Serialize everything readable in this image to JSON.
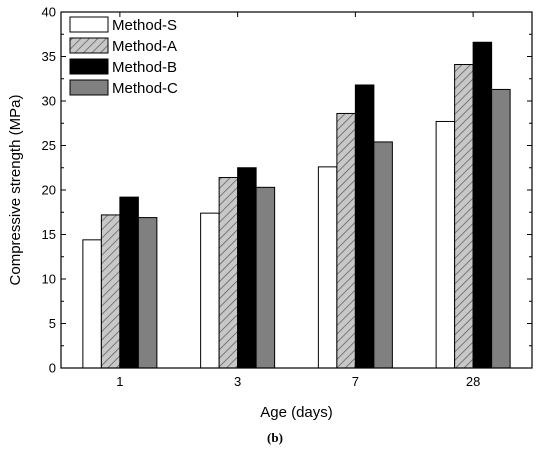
{
  "chart_data": {
    "type": "bar",
    "xlabel": "Age (days)",
    "ylabel": "Compressive strength (MPa)",
    "caption": "(b)",
    "categories": [
      "1",
      "3",
      "7",
      "28"
    ],
    "ylim": [
      0,
      40
    ],
    "yticks": [
      "0",
      "5",
      "10",
      "15",
      "20",
      "25",
      "30",
      "35",
      "40"
    ],
    "grid": false,
    "legend_position": "top-left",
    "series": [
      {
        "name": "Method-S",
        "values": [
          14.4,
          17.4,
          22.6,
          27.7
        ],
        "fill": "#ffffff",
        "pattern": "none"
      },
      {
        "name": "Method-A",
        "values": [
          17.2,
          21.4,
          28.6,
          34.1
        ],
        "fill": "#c8c8c8",
        "pattern": "hatch"
      },
      {
        "name": "Method-B",
        "values": [
          19.2,
          22.5,
          31.8,
          36.6
        ],
        "fill": "#000000",
        "pattern": "none"
      },
      {
        "name": "Method-C",
        "values": [
          16.9,
          20.3,
          25.4,
          31.3
        ],
        "fill": "#808080",
        "pattern": "none"
      }
    ]
  }
}
